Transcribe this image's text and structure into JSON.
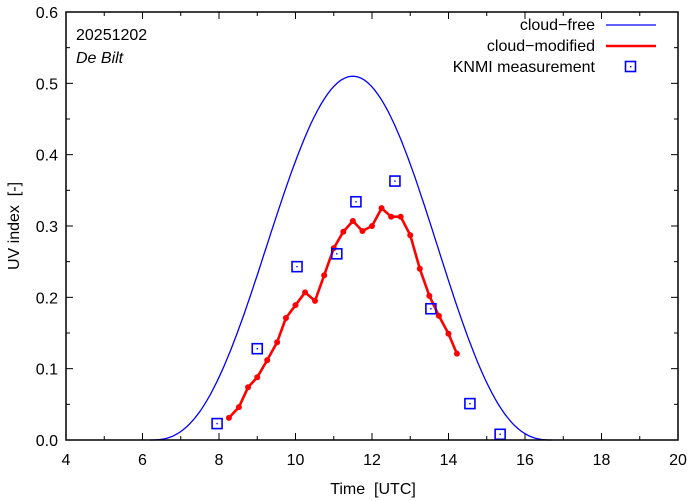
{
  "chart_data": {
    "type": "line",
    "annotation_date": "20251202",
    "annotation_location": "De Bilt",
    "xlabel": "Time  [UTC]",
    "ylabel": "UV index  [-]",
    "xlim": [
      4,
      20
    ],
    "ylim": [
      0,
      0.6
    ],
    "xticks": [
      4,
      6,
      8,
      10,
      12,
      14,
      16,
      18,
      20
    ],
    "xtick_labels": [
      "4",
      "6",
      "8",
      "10",
      "12",
      "14",
      "16",
      "18",
      "20"
    ],
    "yticks": [
      0,
      0.1,
      0.2,
      0.3,
      0.4,
      0.5,
      0.6
    ],
    "ytick_labels": [
      "0.0",
      "0.1",
      "0.2",
      "0.3",
      "0.4",
      "0.5",
      "0.6"
    ],
    "legend_position": "top-right",
    "series": [
      {
        "name": "cloud−free",
        "style": "line",
        "color": "#0000ff",
        "peak_time": 11.5,
        "peak_value": 0.51,
        "start_time": 6.2,
        "end_time": 16.7
      },
      {
        "name": "cloud−modified",
        "style": "line-points",
        "color": "#ff0000",
        "x": [
          8.26,
          8.52,
          8.76,
          9.0,
          9.26,
          9.52,
          9.75,
          10.0,
          10.25,
          10.51,
          10.75,
          11.0,
          11.25,
          11.5,
          11.75,
          12.0,
          12.25,
          12.5,
          12.75,
          13.0,
          13.25,
          13.5,
          13.75,
          14.0,
          14.22
        ],
        "y": [
          0.031,
          0.046,
          0.074,
          0.088,
          0.112,
          0.137,
          0.171,
          0.189,
          0.207,
          0.195,
          0.231,
          0.269,
          0.292,
          0.307,
          0.293,
          0.3,
          0.325,
          0.313,
          0.313,
          0.287,
          0.24,
          0.202,
          0.174,
          0.149,
          0.121
        ]
      },
      {
        "name": "KNMI measurement",
        "style": "markers",
        "color": "#0000ff",
        "x": [
          7.95,
          9.0,
          10.04,
          11.08,
          11.58,
          12.6,
          13.54,
          14.56,
          15.35
        ],
        "y": [
          0.023,
          0.128,
          0.243,
          0.261,
          0.334,
          0.363,
          0.184,
          0.051,
          0.008
        ]
      }
    ]
  }
}
